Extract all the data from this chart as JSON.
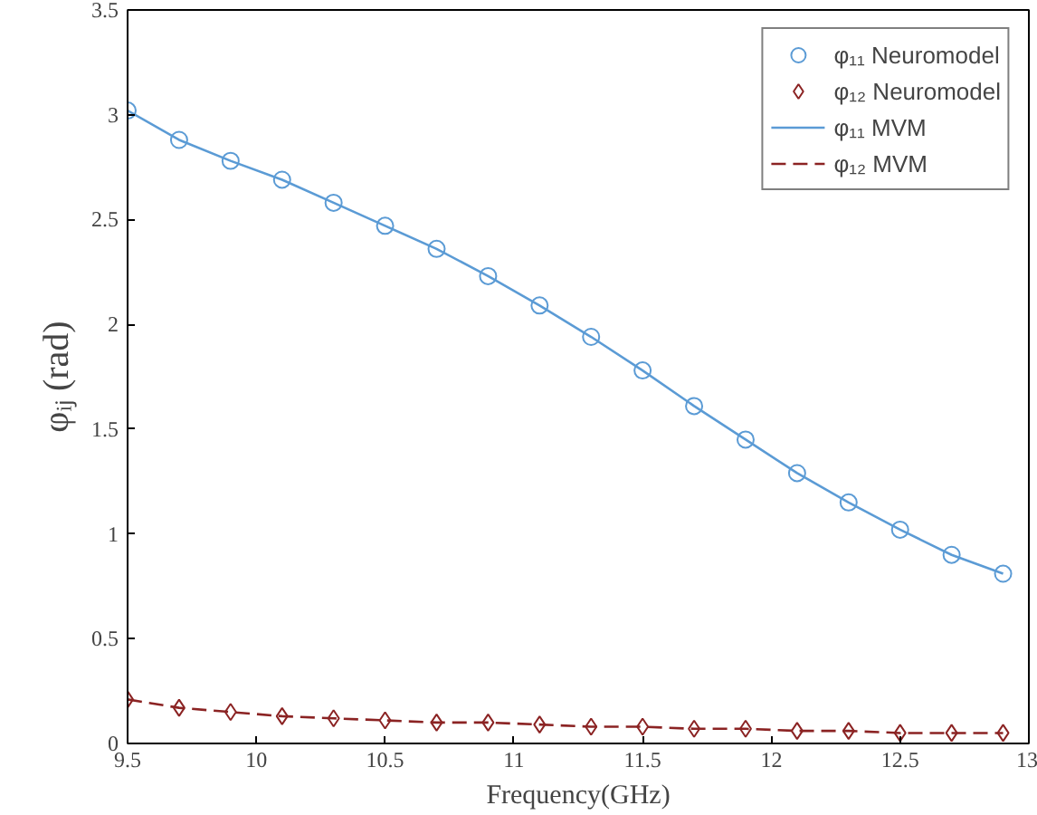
{
  "chart_data": {
    "type": "line",
    "xlabel": "Frequency(GHz)",
    "ylabel": "φᵢⱼ (rad)",
    "x": [
      9.5,
      9.7,
      9.9,
      10.1,
      10.3,
      10.5,
      10.7,
      10.9,
      11.1,
      11.3,
      11.5,
      11.7,
      11.9,
      12.1,
      12.3,
      12.5,
      12.7,
      12.9
    ],
    "series": [
      {
        "name": "φ₁₁ Neuromodel",
        "type": "scatter",
        "marker": "circle",
        "color": "#5b9bd5",
        "values": [
          3.02,
          2.88,
          2.78,
          2.69,
          2.58,
          2.47,
          2.36,
          2.23,
          2.09,
          1.94,
          1.78,
          1.61,
          1.45,
          1.29,
          1.15,
          1.02,
          0.9,
          0.81
        ]
      },
      {
        "name": "φ₁₂ Neuromodel",
        "type": "scatter",
        "marker": "diamond",
        "color": "#8b2323",
        "values": [
          0.21,
          0.17,
          0.15,
          0.13,
          0.12,
          0.11,
          0.1,
          0.1,
          0.09,
          0.08,
          0.08,
          0.07,
          0.07,
          0.06,
          0.06,
          0.05,
          0.05,
          0.05
        ]
      },
      {
        "name": "φ₁₁ MVM",
        "line_style": "solid",
        "color": "#5b9bd5",
        "values": [
          3.02,
          2.88,
          2.78,
          2.69,
          2.58,
          2.47,
          2.36,
          2.23,
          2.09,
          1.94,
          1.78,
          1.61,
          1.45,
          1.29,
          1.15,
          1.02,
          0.9,
          0.81
        ]
      },
      {
        "name": "φ₁₂ MVM",
        "line_style": "dashed",
        "color": "#8b2323",
        "values": [
          0.21,
          0.17,
          0.15,
          0.13,
          0.12,
          0.11,
          0.1,
          0.1,
          0.09,
          0.08,
          0.08,
          0.07,
          0.07,
          0.06,
          0.06,
          0.05,
          0.05,
          0.05
        ]
      }
    ],
    "xlim": [
      9.5,
      13
    ],
    "xticks": [
      9.5,
      10,
      10.5,
      11,
      11.5,
      12,
      12.5,
      13
    ],
    "ylim": [
      0,
      3.5
    ],
    "yticks": [
      0,
      0.5,
      1,
      1.5,
      2,
      2.5,
      3,
      3.5
    ],
    "legend": "top right"
  }
}
